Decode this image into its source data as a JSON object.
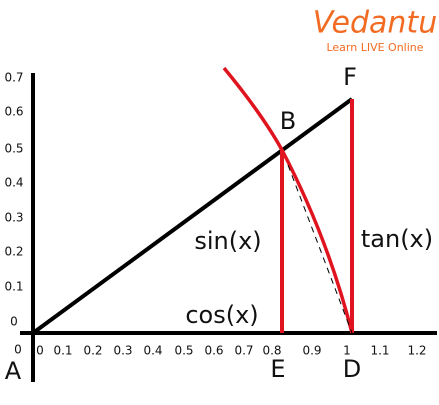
{
  "logo": {
    "brand": "Vedantu",
    "tagline": "Learn LIVE Online"
  },
  "y_axis_labels": [
    "0.7",
    "0.6",
    "0.5",
    "0.4",
    "0.3",
    "0.2",
    "0.1",
    "0"
  ],
  "x_axis_labels": [
    "0",
    "0.1",
    "0.2",
    "0.3",
    "0.4",
    "0.5",
    "0.6",
    "0.7",
    "0.8",
    "0.9",
    "1",
    "1.1",
    "1.2"
  ],
  "origin_label": "0",
  "points": {
    "A": "A",
    "B": "B",
    "D": "D",
    "E": "E",
    "F": "F"
  },
  "functions": {
    "sin": "sin(x)",
    "cos": "cos(x)",
    "tan": "tan(x)"
  }
}
